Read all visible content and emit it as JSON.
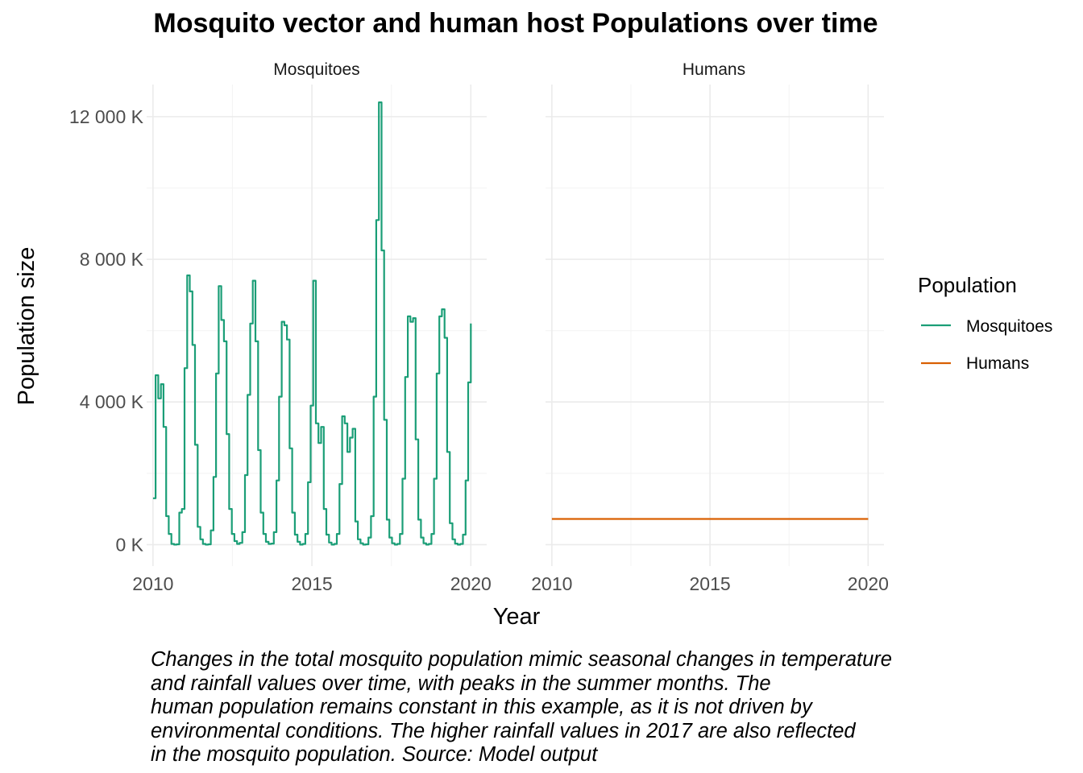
{
  "chart_data": {
    "type": "line",
    "title": "Mosquito vector and human host Populations over time",
    "xlabel": "Year",
    "ylabel": "Population size",
    "xlim": [
      2009.8,
      2020.5
    ],
    "ylim": [
      -600,
      12900
    ],
    "x_ticks": [
      2010,
      2015,
      2020
    ],
    "y_ticks": [
      0,
      4000,
      8000,
      12000
    ],
    "y_tick_labels": [
      "0 K",
      "4 000 K",
      "8 000 K",
      "12 000 K"
    ],
    "y_unit": "thousands",
    "grid": true,
    "legend": {
      "title": "Population",
      "position": "right",
      "entries": [
        "Mosquitoes",
        "Humans"
      ]
    },
    "panels": [
      {
        "strip_label": "Mosquitoes",
        "series": [
          {
            "name": "Mosquitoes",
            "color": "#1b9e77",
            "monthly_start_year": 2010,
            "values": [
              1300,
              4750,
              4100,
              4500,
              3300,
              800,
              300,
              20,
              0,
              10,
              900,
              1000,
              4950,
              7550,
              7100,
              5600,
              2800,
              500,
              150,
              20,
              0,
              10,
              400,
              1900,
              4800,
              7250,
              6300,
              5700,
              3100,
              1000,
              300,
              100,
              20,
              50,
              350,
              1950,
              4200,
              6200,
              7400,
              5700,
              2650,
              900,
              300,
              80,
              20,
              30,
              350,
              1800,
              4150,
              6250,
              6150,
              5750,
              2700,
              900,
              280,
              80,
              0,
              20,
              300,
              1750,
              3900,
              7400,
              3400,
              2850,
              3300,
              1000,
              280,
              60,
              0,
              20,
              300,
              1700,
              3600,
              3400,
              2600,
              3000,
              3250,
              650,
              150,
              40,
              0,
              10,
              200,
              800,
              4150,
              9100,
              12400,
              8250,
              3500,
              700,
              200,
              40,
              0,
              20,
              300,
              1850,
              4700,
              6400,
              6250,
              6350,
              2950,
              700,
              200,
              40,
              0,
              20,
              300,
              1850,
              4800,
              6400,
              6600,
              5800,
              2600,
              600,
              150,
              30,
              0,
              20,
              280,
              1800,
              4550,
              6200
            ]
          }
        ]
      },
      {
        "strip_label": "Humans",
        "series": [
          {
            "name": "Humans",
            "color": "#d95f02",
            "x": [
              2010,
              2020
            ],
            "values": [
              720,
              720
            ]
          }
        ]
      }
    ]
  },
  "caption_lines": [
    "Changes in the total mosquito population mimic seasonal changes in temperature",
    "and rainfall values over time, with peaks in the summer months. The",
    "human population remains constant in this example, as it is not driven by",
    "environmental conditions. The higher rainfall values in 2017 are also reflected",
    "in the mosquito population. Source: Model output"
  ]
}
